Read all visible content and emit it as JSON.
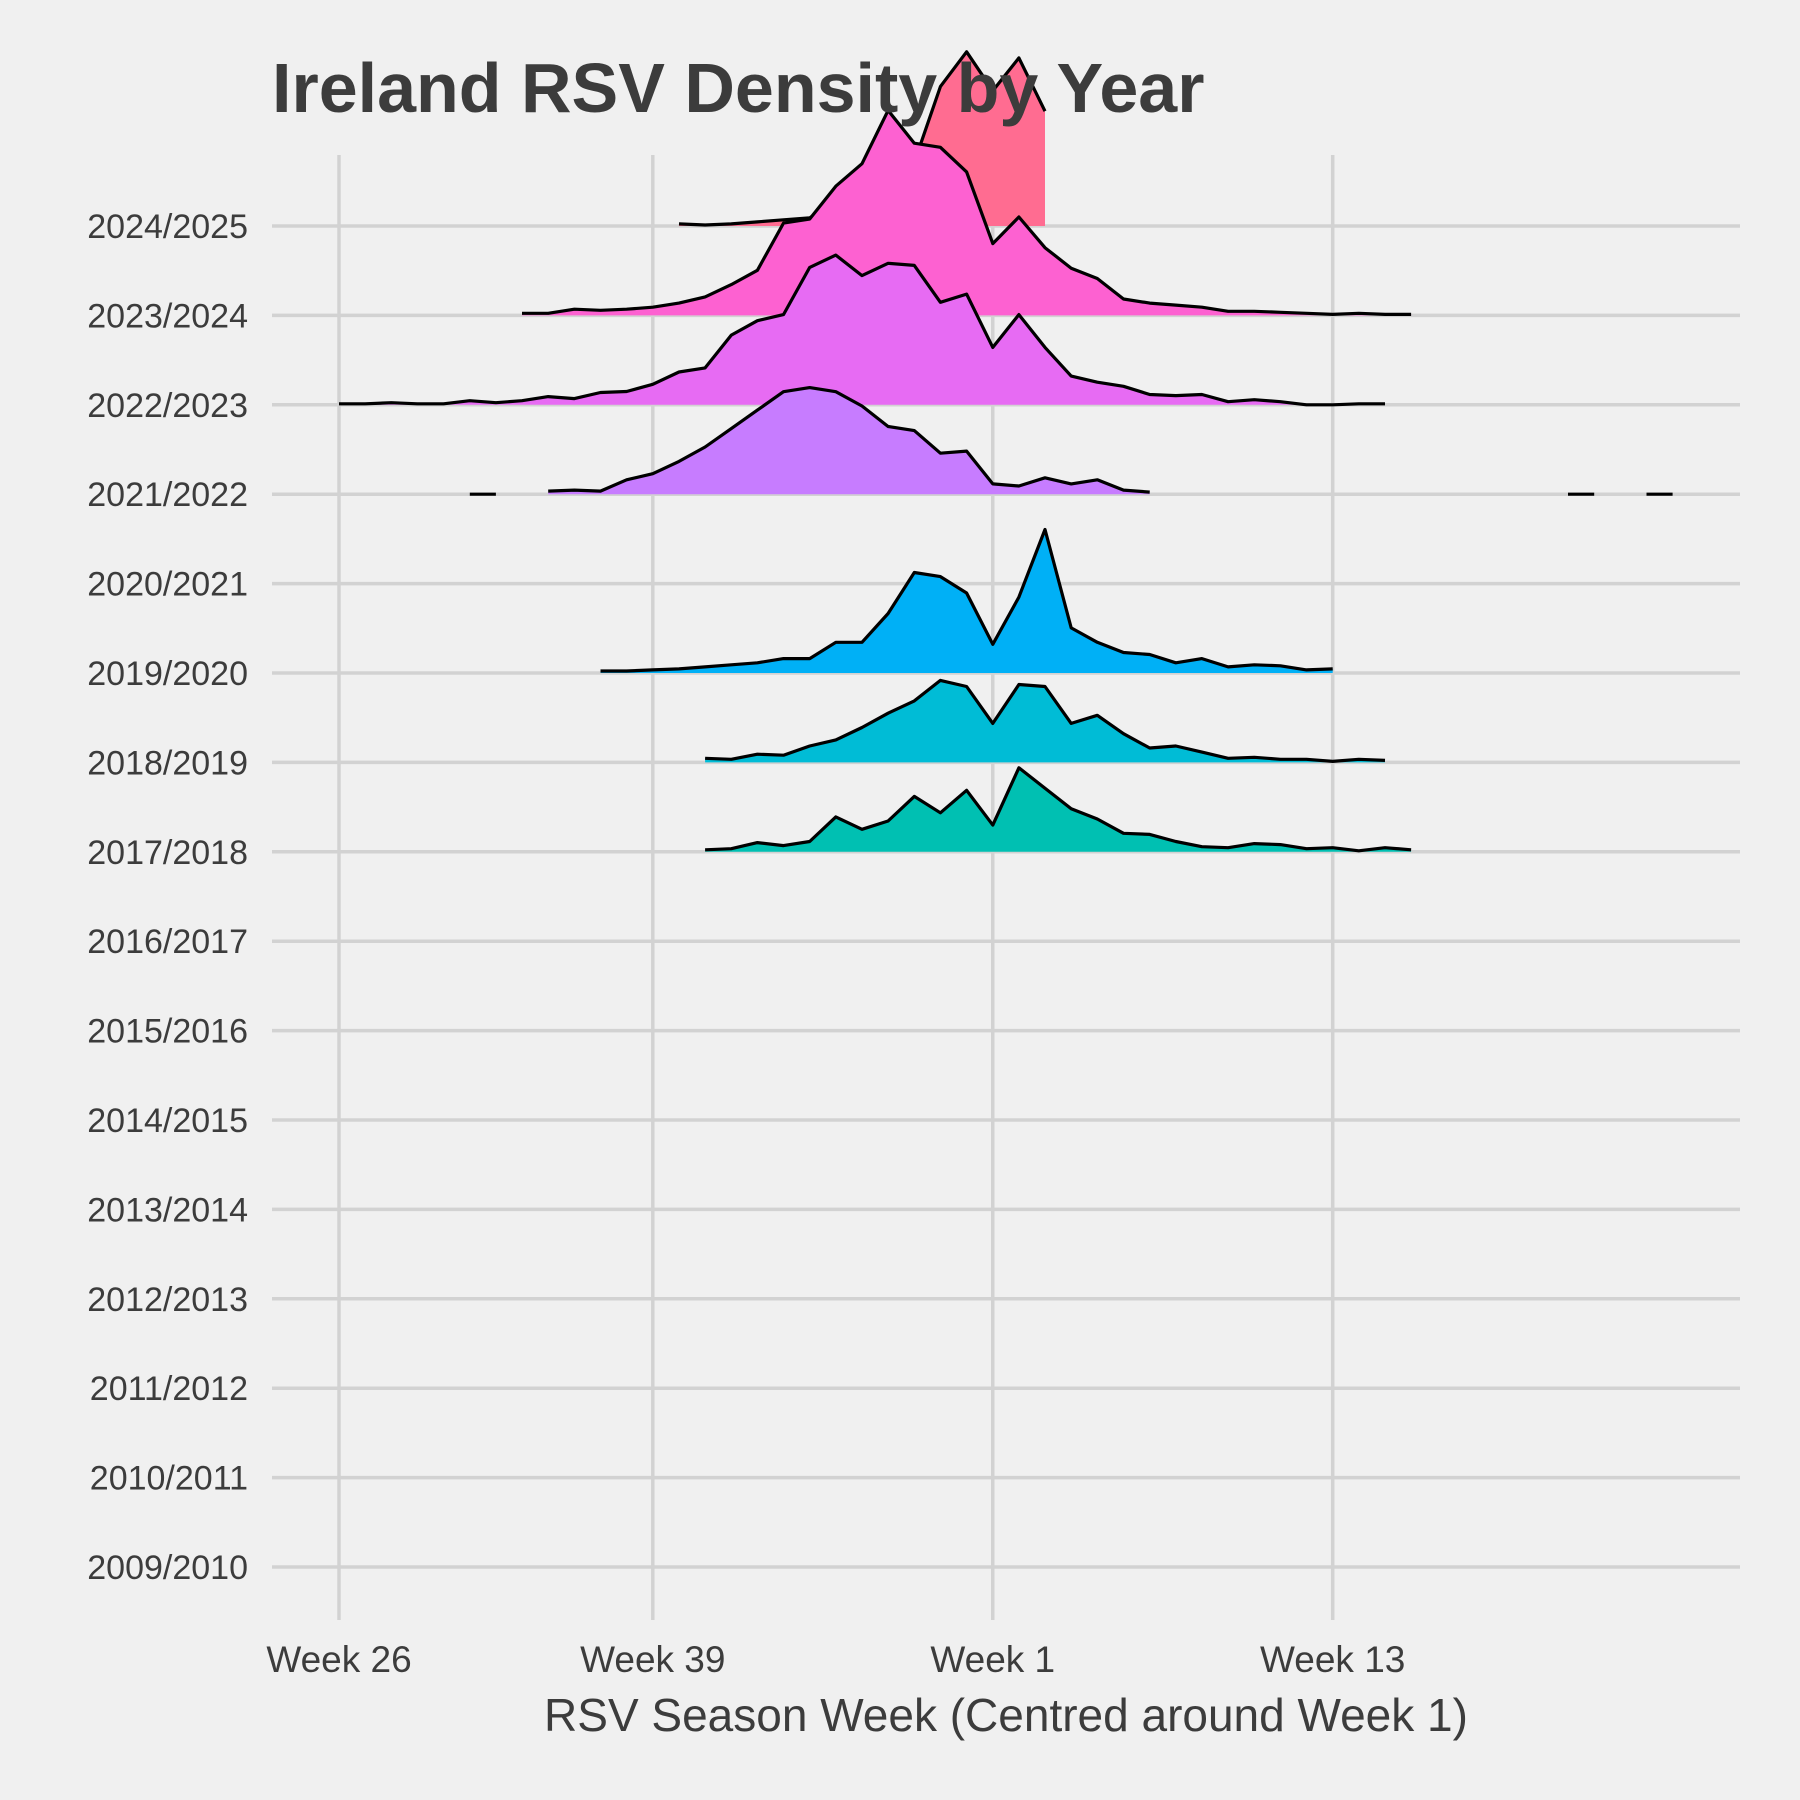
{
  "chart_data": {
    "type": "ridgeline",
    "title": "Ireland RSV Density by Year",
    "xlabel": "RSV Season Week (Centred around Week 1)",
    "ylabel": "",
    "x_ticks": [
      {
        "week": 0,
        "label": "Week 26"
      },
      {
        "week": 12,
        "label": "Week 39"
      },
      {
        "week": 25,
        "label": "Week 1"
      },
      {
        "week": 38,
        "label": "Week 13"
      }
    ],
    "xlim": [
      -2.5,
      53.7
    ],
    "grid": true,
    "legend": "none",
    "series": [
      {
        "name": "2009/2010",
        "color": "#f8766d",
        "segments": []
      },
      {
        "name": "2010/2011",
        "color": "#e7851e",
        "segments": []
      },
      {
        "name": "2011/2012",
        "color": "#d09400",
        "segments": []
      },
      {
        "name": "2012/2013",
        "color": "#b2a100",
        "segments": []
      },
      {
        "name": "2013/2014",
        "color": "#89ac00",
        "segments": []
      },
      {
        "name": "2014/2015",
        "color": "#45b500",
        "segments": []
      },
      {
        "name": "2015/2016",
        "color": "#00bc51",
        "segments": []
      },
      {
        "name": "2016/2017",
        "color": "#00c087",
        "segments": []
      },
      {
        "name": "2017/2018",
        "color": "#00c0b2",
        "segments": [
          [
            [
              14,
              0.01
            ],
            [
              15,
              0.015
            ],
            [
              16,
              0.045
            ],
            [
              17,
              0.03
            ],
            [
              18,
              0.05
            ],
            [
              19,
              0.17
            ],
            [
              20,
              0.11
            ],
            [
              21,
              0.15
            ],
            [
              22,
              0.27
            ],
            [
              23,
              0.19
            ],
            [
              24,
              0.3
            ],
            [
              25,
              0.13
            ],
            [
              26,
              0.41
            ],
            [
              27,
              0.31
            ],
            [
              28,
              0.21
            ],
            [
              29,
              0.16
            ],
            [
              30,
              0.09
            ],
            [
              31,
              0.085
            ],
            [
              32,
              0.05
            ],
            [
              33,
              0.025
            ],
            [
              34,
              0.02
            ],
            [
              35,
              0.04
            ],
            [
              36,
              0.035
            ],
            [
              37,
              0.015
            ],
            [
              38,
              0.02
            ],
            [
              39,
              0.005
            ],
            [
              40,
              0.02
            ],
            [
              41,
              0.01
            ]
          ]
        ]
      },
      {
        "name": "2018/2019",
        "color": "#00bcd6",
        "segments": [
          [
            [
              14,
              0.02
            ],
            [
              15,
              0.015
            ],
            [
              16,
              0.04
            ],
            [
              17,
              0.035
            ],
            [
              18,
              0.08
            ],
            [
              19,
              0.11
            ],
            [
              20,
              0.17
            ],
            [
              21,
              0.24
            ],
            [
              22,
              0.3
            ],
            [
              23,
              0.4
            ],
            [
              24,
              0.37
            ],
            [
              25,
              0.19
            ],
            [
              26,
              0.38
            ],
            [
              27,
              0.37
            ],
            [
              28,
              0.19
            ],
            [
              29,
              0.23
            ],
            [
              30,
              0.14
            ],
            [
              31,
              0.07
            ],
            [
              32,
              0.08
            ],
            [
              33,
              0.05
            ],
            [
              34,
              0.02
            ],
            [
              35,
              0.025
            ],
            [
              36,
              0.015
            ],
            [
              37,
              0.015
            ],
            [
              38,
              0.005
            ],
            [
              39,
              0.015
            ],
            [
              40,
              0.01
            ]
          ]
        ]
      },
      {
        "name": "2019/2020",
        "color": "#00b0f6",
        "segments": [
          [
            [
              10,
              0.01
            ],
            [
              11,
              0.01
            ],
            [
              12,
              0.015
            ],
            [
              13,
              0.02
            ],
            [
              14,
              0.03
            ],
            [
              15,
              0.04
            ],
            [
              16,
              0.05
            ],
            [
              17,
              0.07
            ],
            [
              18,
              0.07
            ],
            [
              19,
              0.15
            ],
            [
              20,
              0.15
            ],
            [
              21,
              0.29
            ],
            [
              22,
              0.49
            ],
            [
              23,
              0.47
            ],
            [
              24,
              0.39
            ],
            [
              25,
              0.14
            ],
            [
              26,
              0.37
            ],
            [
              27,
              0.7
            ],
            [
              28,
              0.22
            ],
            [
              29,
              0.15
            ],
            [
              30,
              0.1
            ],
            [
              31,
              0.09
            ],
            [
              32,
              0.05
            ],
            [
              33,
              0.07
            ],
            [
              34,
              0.03
            ],
            [
              35,
              0.04
            ],
            [
              36,
              0.035
            ],
            [
              37,
              0.015
            ],
            [
              38,
              0.02
            ]
          ]
        ]
      },
      {
        "name": "2020/2021",
        "color": "#35a2ff",
        "segments": []
      },
      {
        "name": "2021/2022",
        "color": "#c77cff",
        "segments": [
          [
            [
              5,
              0.0
            ],
            [
              6,
              0.0
            ]
          ],
          [
            [
              8,
              0.015
            ],
            [
              9,
              0.02
            ],
            [
              10,
              0.015
            ],
            [
              11,
              0.07
            ],
            [
              12,
              0.1
            ],
            [
              13,
              0.16
            ],
            [
              14,
              0.23
            ],
            [
              15,
              0.32
            ],
            [
              16,
              0.41
            ],
            [
              17,
              0.5
            ],
            [
              18,
              0.52
            ],
            [
              19,
              0.5
            ],
            [
              20,
              0.43
            ],
            [
              21,
              0.33
            ],
            [
              22,
              0.31
            ],
            [
              23,
              0.2
            ],
            [
              24,
              0.21
            ],
            [
              25,
              0.05
            ],
            [
              26,
              0.04
            ],
            [
              27,
              0.08
            ],
            [
              28,
              0.05
            ],
            [
              29,
              0.07
            ],
            [
              30,
              0.02
            ],
            [
              31,
              0.01
            ]
          ],
          [
            [
              47,
              0.0
            ],
            [
              48,
              0.0
            ]
          ],
          [
            [
              50,
              0.0
            ],
            [
              51,
              0.0
            ]
          ]
        ]
      },
      {
        "name": "2022/2023",
        "color": "#e76bf3",
        "segments": [
          [
            [
              0,
              0.005
            ],
            [
              1,
              0.005
            ],
            [
              2,
              0.01
            ],
            [
              3,
              0.005
            ],
            [
              4,
              0.005
            ],
            [
              5,
              0.02
            ],
            [
              6,
              0.01
            ],
            [
              7,
              0.02
            ],
            [
              8,
              0.04
            ],
            [
              9,
              0.03
            ],
            [
              10,
              0.06
            ],
            [
              11,
              0.065
            ],
            [
              12,
              0.1
            ],
            [
              13,
              0.16
            ],
            [
              14,
              0.18
            ],
            [
              15,
              0.34
            ],
            [
              16,
              0.41
            ],
            [
              17,
              0.44
            ],
            [
              18,
              0.67
            ],
            [
              19,
              0.73
            ],
            [
              20,
              0.63
            ],
            [
              21,
              0.69
            ],
            [
              22,
              0.68
            ],
            [
              23,
              0.5
            ],
            [
              24,
              0.54
            ],
            [
              25,
              0.28
            ],
            [
              26,
              0.44
            ],
            [
              27,
              0.28
            ],
            [
              28,
              0.14
            ],
            [
              29,
              0.11
            ],
            [
              30,
              0.09
            ],
            [
              31,
              0.05
            ],
            [
              32,
              0.045
            ],
            [
              33,
              0.05
            ],
            [
              34,
              0.015
            ],
            [
              35,
              0.025
            ],
            [
              36,
              0.015
            ],
            [
              37,
              0.0
            ],
            [
              38,
              0.0
            ],
            [
              39,
              0.005
            ],
            [
              40,
              0.005
            ]
          ]
        ]
      },
      {
        "name": "2023/2024",
        "color": "#fd61d1",
        "segments": [
          [
            [
              7,
              0.01
            ],
            [
              8,
              0.01
            ],
            [
              9,
              0.03
            ],
            [
              10,
              0.025
            ],
            [
              11,
              0.03
            ],
            [
              12,
              0.04
            ],
            [
              13,
              0.06
            ],
            [
              14,
              0.09
            ],
            [
              15,
              0.15
            ],
            [
              16,
              0.22
            ],
            [
              17,
              0.45
            ],
            [
              18,
              0.47
            ],
            [
              19,
              0.63
            ],
            [
              20,
              0.74
            ],
            [
              21,
              1.0
            ],
            [
              22,
              0.84
            ],
            [
              23,
              0.82
            ],
            [
              24,
              0.7
            ],
            [
              25,
              0.35
            ],
            [
              26,
              0.48
            ],
            [
              27,
              0.33
            ],
            [
              28,
              0.23
            ],
            [
              29,
              0.18
            ],
            [
              30,
              0.08
            ],
            [
              31,
              0.06
            ],
            [
              32,
              0.05
            ],
            [
              33,
              0.04
            ],
            [
              34,
              0.02
            ],
            [
              35,
              0.02
            ],
            [
              36,
              0.015
            ],
            [
              37,
              0.01
            ],
            [
              38,
              0.005
            ],
            [
              39,
              0.01
            ],
            [
              40,
              0.005
            ],
            [
              41,
              0.005
            ]
          ]
        ]
      },
      {
        "name": "2024/2025",
        "color": "#ff6c91",
        "segments": [
          [
            [
              13,
              0.01
            ],
            [
              14,
              0.005
            ],
            [
              15,
              0.01
            ],
            [
              16,
              0.02
            ],
            [
              17,
              0.03
            ],
            [
              18,
              0.04
            ],
            [
              19,
              0.12
            ],
            [
              20,
              0.17
            ],
            [
              21,
              0.34
            ],
            [
              22,
              0.31
            ],
            [
              23,
              0.68
            ],
            [
              24,
              0.85
            ],
            [
              25,
              0.66
            ],
            [
              26,
              0.82
            ],
            [
              27,
              0.56
            ]
          ]
        ]
      }
    ]
  }
}
